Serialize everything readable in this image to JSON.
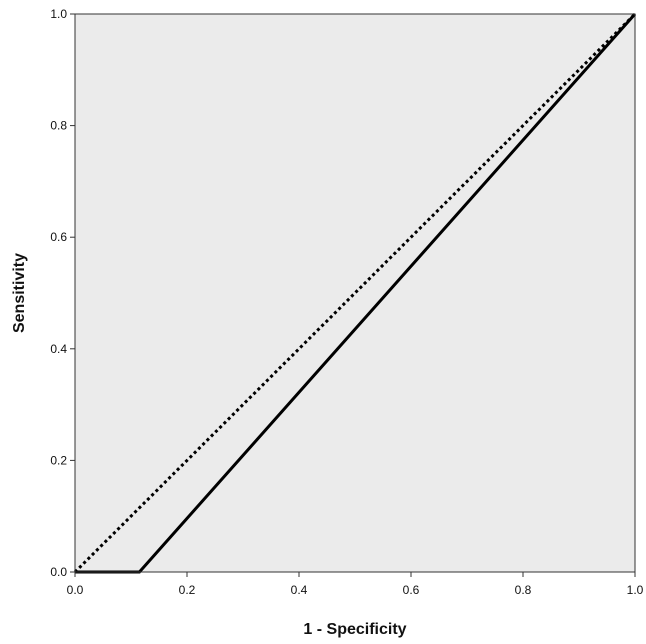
{
  "chart_data": {
    "type": "line",
    "title": "",
    "xlabel": "1 - Specificity",
    "ylabel": "Sensitivity",
    "xlim": [
      0.0,
      1.0
    ],
    "ylim": [
      0.0,
      1.0
    ],
    "x_ticks": [
      "0.0",
      "0.2",
      "0.4",
      "0.6",
      "0.8",
      "1.0"
    ],
    "y_ticks": [
      "0.0",
      "0.2",
      "0.4",
      "0.6",
      "0.8",
      "1.0"
    ],
    "grid": false,
    "legend": "none",
    "background_color": "#ebebeb",
    "series": [
      {
        "style": "solid",
        "color": "#000000",
        "points": [
          [
            0.0,
            0.0
          ],
          [
            0.115,
            0.0
          ],
          [
            1.0,
            1.0
          ]
        ]
      },
      {
        "style": "dotted",
        "color": "#000000",
        "points": [
          [
            0.0,
            0.0
          ],
          [
            1.0,
            1.0
          ]
        ]
      }
    ]
  }
}
